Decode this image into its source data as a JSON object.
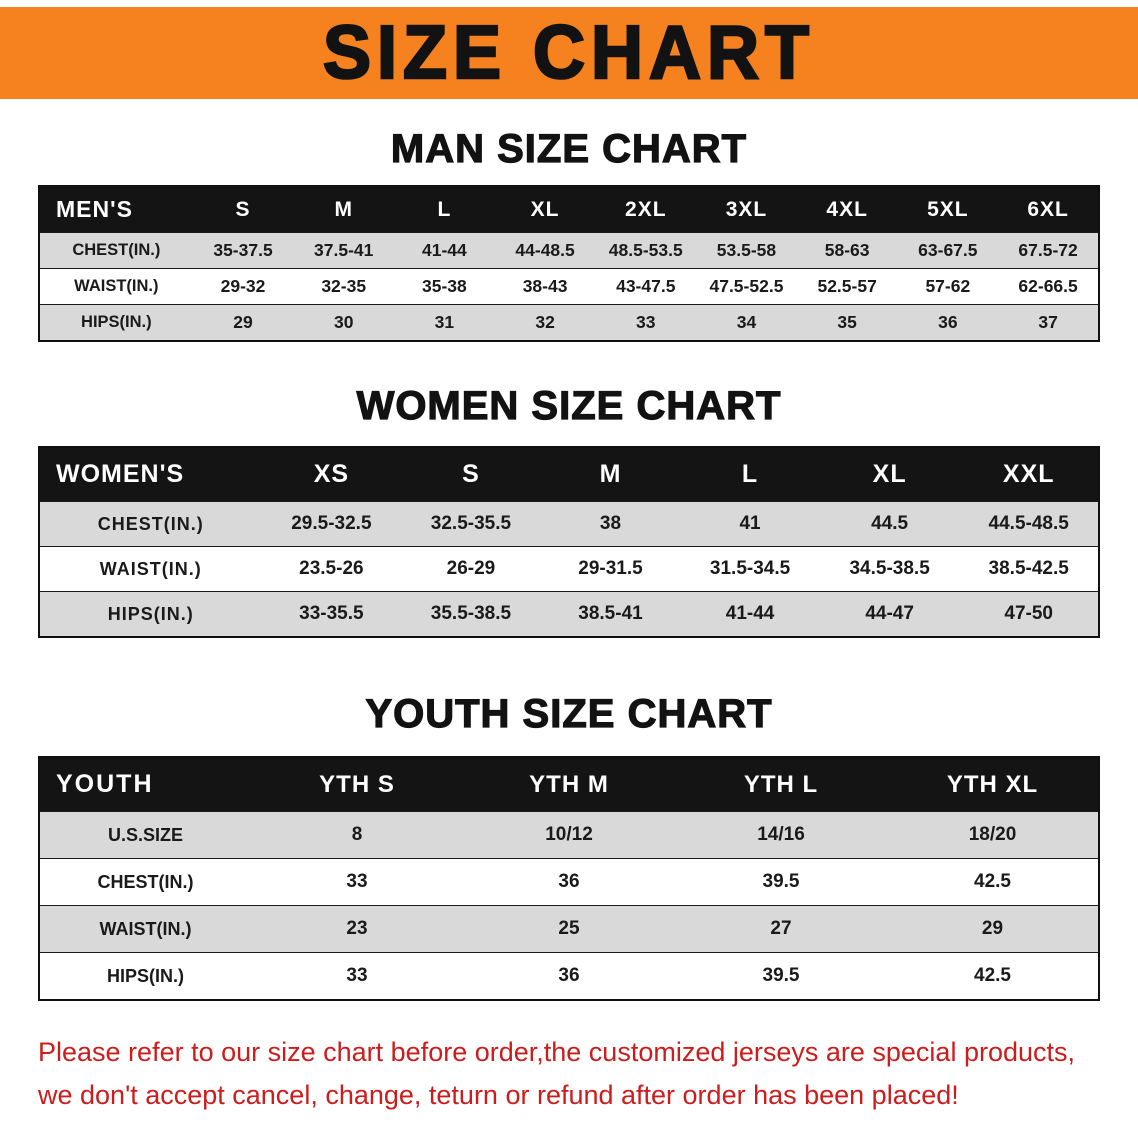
{
  "banner": {
    "title": "SIZE CHART",
    "bg_color": "#f5821f"
  },
  "chart_data": [
    {
      "type": "table",
      "title": "MAN SIZE CHART",
      "columns": [
        "MEN'S",
        "S",
        "M",
        "L",
        "XL",
        "2XL",
        "3XL",
        "4XL",
        "5XL",
        "6XL"
      ],
      "rows": [
        [
          "CHEST(IN.)",
          "35-37.5",
          "37.5-41",
          "41-44",
          "44-48.5",
          "48.5-53.5",
          "53.5-58",
          "58-63",
          "63-67.5",
          "67.5-72"
        ],
        [
          "WAIST(IN.)",
          "29-32",
          "32-35",
          "35-38",
          "38-43",
          "43-47.5",
          "47.5-52.5",
          "52.5-57",
          "57-62",
          "62-66.5"
        ],
        [
          "HIPS(IN.)",
          "29",
          "30",
          "31",
          "32",
          "33",
          "34",
          "35",
          "36",
          "37"
        ]
      ]
    },
    {
      "type": "table",
      "title": "WOMEN SIZE CHART",
      "columns": [
        "WOMEN'S",
        "XS",
        "S",
        "M",
        "L",
        "XL",
        "XXL"
      ],
      "rows": [
        [
          "CHEST(IN.)",
          "29.5-32.5",
          "32.5-35.5",
          "38",
          "41",
          "44.5",
          "44.5-48.5"
        ],
        [
          "WAIST(IN.)",
          "23.5-26",
          "26-29",
          "29-31.5",
          "31.5-34.5",
          "34.5-38.5",
          "38.5-42.5"
        ],
        [
          "HIPS(IN.)",
          "33-35.5",
          "35.5-38.5",
          "38.5-41",
          "41-44",
          "44-47",
          "47-50"
        ]
      ]
    },
    {
      "type": "table",
      "title": "YOUTH SIZE CHART",
      "columns": [
        "YOUTH",
        "YTH S",
        "YTH M",
        "YTH L",
        "YTH XL"
      ],
      "rows": [
        [
          "U.S.SIZE",
          "8",
          "10/12",
          "14/16",
          "18/20"
        ],
        [
          "CHEST(IN.)",
          "33",
          "36",
          "39.5",
          "42.5"
        ],
        [
          "WAIST(IN.)",
          "23",
          "25",
          "27",
          "29"
        ],
        [
          "HIPS(IN.)",
          "33",
          "36",
          "39.5",
          "42.5"
        ]
      ]
    }
  ],
  "footer": {
    "color": "#cc1c1c",
    "lines": [
      "Please refer to our size chart before order,the customized jerseys are special products,",
      "we don't accept cancel, change, teturn or refund after order has been placed!"
    ]
  }
}
